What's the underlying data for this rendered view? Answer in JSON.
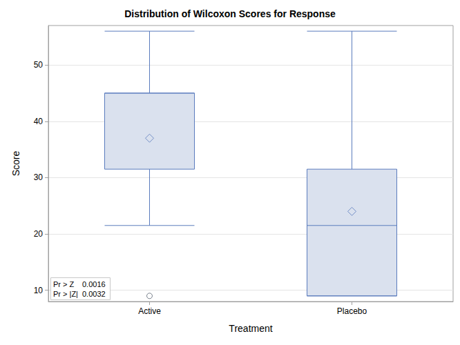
{
  "chart_data": {
    "type": "boxplot",
    "title": "Distribution of Wilcoxon Scores for Response",
    "x_label": "Treatment",
    "y_label": "Score",
    "categories": [
      "Active",
      "Placebo"
    ],
    "boxes": [
      {
        "min": 21.5,
        "q1": 31.5,
        "median": 45,
        "q3": 45,
        "max": 56,
        "mean": 37,
        "outliers": [
          9
        ]
      },
      {
        "min": 9,
        "q1": 9,
        "median": 21.5,
        "q3": 31.5,
        "max": 56,
        "mean": 24,
        "outliers": []
      }
    ],
    "color": "#5a7bbd",
    "ylim": [
      8,
      57
    ],
    "yticks": [
      10,
      20,
      30,
      40,
      50
    ],
    "grid": true,
    "annotations": [
      {
        "text": "Pr > Z",
        "value": 0.0016
      },
      {
        "text": "Pr > |Z|",
        "value": 0.0032
      }
    ]
  }
}
